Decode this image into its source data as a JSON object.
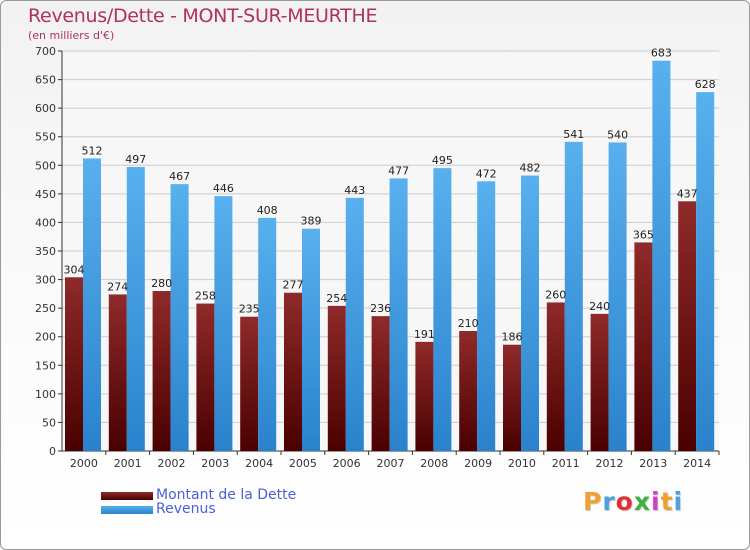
{
  "header": {
    "title": "Revenus/Dette - MONT-SUR-MEURTHE",
    "subtitle": "(en milliers d'€)"
  },
  "chart_data": {
    "type": "bar",
    "categories": [
      "2000",
      "2001",
      "2002",
      "2003",
      "2004",
      "2005",
      "2006",
      "2007",
      "2008",
      "2009",
      "2010",
      "2011",
      "2012",
      "2013",
      "2014"
    ],
    "series": [
      {
        "name": "Montant de la Dette",
        "color": "#7a1a1a",
        "labels": [
          "304",
          "274",
          "280",
          "258",
          "235",
          "277",
          "254",
          "236",
          "191",
          "210",
          "186",
          "260",
          "240",
          "365",
          "437"
        ],
        "values": [
          304,
          274,
          280,
          258,
          235,
          277,
          254,
          236,
          191,
          210,
          186,
          260,
          240,
          365,
          437
        ]
      },
      {
        "name": "Revenus",
        "color": "#4fa6e8",
        "labels": [
          "512",
          "497",
          "467",
          "446",
          "408",
          "389",
          "443",
          "477",
          "495",
          "472",
          "482",
          "541",
          "540",
          "683",
          "628"
        ],
        "values": [
          512,
          497,
          467,
          446,
          408,
          389,
          443,
          477,
          495,
          472,
          482,
          541,
          540,
          683,
          628
        ]
      }
    ],
    "yticks": [
      "0",
      "50",
      "100",
      "150",
      "200",
      "250",
      "300",
      "350",
      "400",
      "450",
      "500",
      "550",
      "600",
      "650",
      "700"
    ],
    "ylim": [
      0,
      700
    ],
    "grid": true,
    "legend": "bottom-left"
  },
  "legend": {
    "debt_label": "Montant de la Dette",
    "revenue_label": "Revenus"
  },
  "branding": {
    "logo": [
      "P",
      "r",
      "o",
      "x",
      "i",
      "t",
      "i"
    ],
    "logo_colors": [
      "#f0a030",
      "#50a0e0",
      "#e03030",
      "#40b040",
      "#d040c0",
      "#f0a030",
      "#50a0e0"
    ]
  }
}
